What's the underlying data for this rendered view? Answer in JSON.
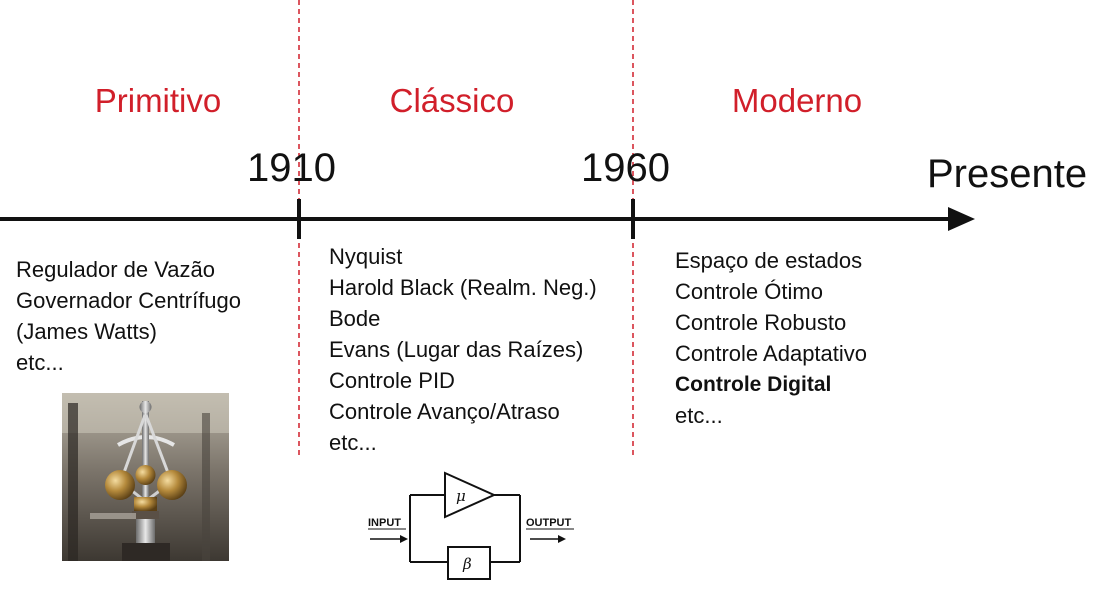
{
  "eras": [
    {
      "name": "Primitivo"
    },
    {
      "name": "Clássico"
    },
    {
      "name": "Moderno"
    }
  ],
  "years": [
    "1910",
    "1960"
  ],
  "present_label": "Presente",
  "primitive_items": [
    "Regulador de Vazão",
    "Governador Centrífugo",
    "(James Watts)",
    "etc..."
  ],
  "classic_items": [
    "Nyquist",
    "Harold Black (Realm. Neg.)",
    "Bode",
    "Evans (Lugar das Raízes)",
    "Controle PID",
    "Controle Avanço/Atraso",
    "etc..."
  ],
  "modern_items": [
    "Espaço de estados",
    "Controle Ótimo",
    "Controle Robusto",
    "Controle Adaptativo",
    "Controle Digital",
    "etc..."
  ],
  "block_diagram": {
    "input_label": "INPUT",
    "output_label": "OUTPUT",
    "forward_gain": "μ",
    "feedback_gain": "β"
  },
  "colors": {
    "era_text": "#d11f2a",
    "divider": "#d11f2a",
    "axis": "#111111"
  }
}
